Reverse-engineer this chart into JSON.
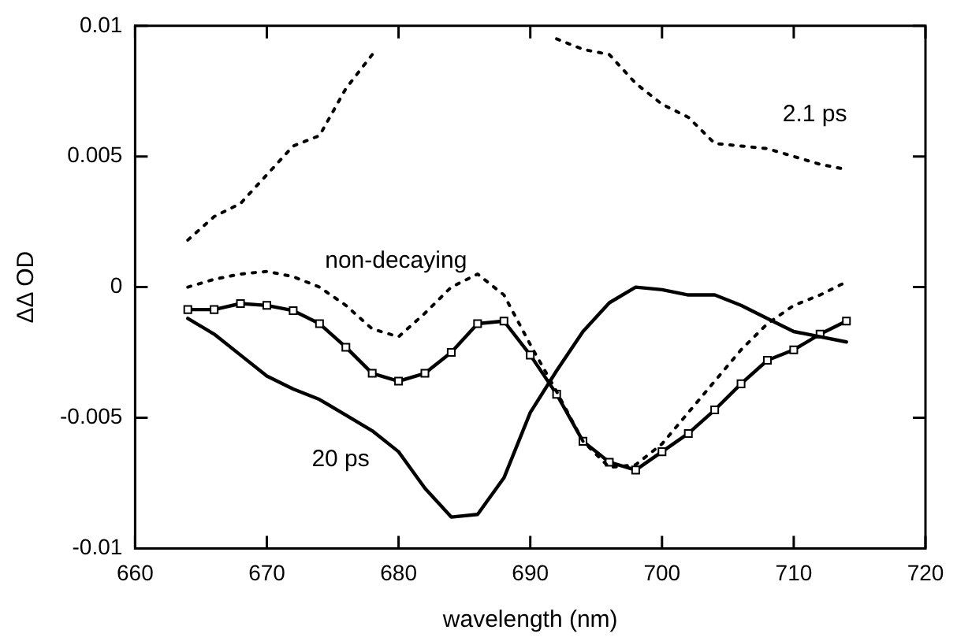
{
  "chart_data": {
    "type": "line",
    "xlabel": "wavelength (nm)",
    "ylabel": "ΔΔ OD",
    "x": [
      664,
      666,
      668,
      670,
      672,
      674,
      676,
      678,
      680,
      682,
      684,
      686,
      688,
      690,
      692,
      694,
      696,
      698,
      700,
      702,
      704,
      706,
      708,
      710,
      712,
      714
    ],
    "xlim": [
      660,
      720
    ],
    "xticks": [
      660,
      670,
      680,
      690,
      700,
      710,
      720
    ],
    "ylim": [
      -0.01,
      0.01
    ],
    "yticks": [
      -0.01,
      -0.005,
      0,
      0.005,
      0.01
    ],
    "grid": false,
    "legend": false,
    "series": [
      {
        "name": "2.1 ps",
        "color": "#000000",
        "line_style": "dotted",
        "marker": "none",
        "values": [
          0.0018,
          0.0027,
          0.0032,
          0.0043,
          0.0054,
          0.0058,
          0.0076,
          0.0089,
          null,
          null,
          null,
          null,
          null,
          null,
          0.0095,
          0.0091,
          0.0089,
          0.0078,
          0.007,
          0.0065,
          0.0055,
          0.0054,
          0.0053,
          0.005,
          0.0047,
          0.0045
        ]
      },
      {
        "name": "non-decaying",
        "color": "#000000",
        "line_style": "dotted",
        "marker": "none",
        "values": [
          0,
          0.0003,
          0.0005,
          0.0006,
          0.0004,
          0,
          -0.0007,
          -0.0016,
          -0.0019,
          -0.001,
          0,
          0.0005,
          -0.0003,
          -0.0022,
          -0.004,
          -0.0059,
          -0.0069,
          -0.0068,
          -0.006,
          -0.0048,
          -0.0036,
          -0.0024,
          -0.0014,
          -0.0007,
          -0.0003,
          0.0002
        ]
      },
      {
        "name": "20 ps",
        "color": "#000000",
        "line_style": "solid",
        "marker": "none",
        "values": [
          -0.0012,
          -0.0018,
          -0.0026,
          -0.0034,
          -0.0039,
          -0.0043,
          -0.0049,
          -0.0055,
          -0.0063,
          -0.0077,
          -0.0088,
          -0.0087,
          -0.0073,
          -0.0048,
          -0.0032,
          -0.0017,
          -0.0006,
          0,
          -0.0001,
          -0.0003,
          -0.0003,
          -0.0007,
          -0.0012,
          -0.0017,
          -0.0019,
          -0.0021
        ]
      },
      {
        "color": "#000000",
        "line_style": "solid",
        "marker": "square",
        "values": [
          -0.00086,
          -0.00086,
          -0.00063,
          -0.0007,
          -0.0009,
          -0.0014,
          -0.0023,
          -0.0033,
          -0.0036,
          -0.0033,
          -0.0025,
          -0.0014,
          -0.0013,
          -0.0026,
          -0.0041,
          -0.0059,
          -0.0067,
          -0.007,
          -0.0063,
          -0.0056,
          -0.0047,
          -0.0037,
          -0.0028,
          -0.0024,
          -0.0018,
          -0.0013
        ]
      }
    ]
  }
}
